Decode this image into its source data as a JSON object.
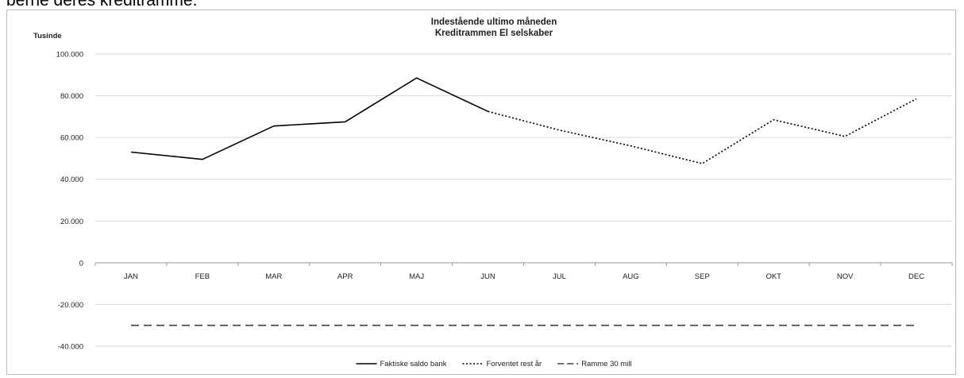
{
  "page": {
    "top_text": "berne deres kreditramme."
  },
  "chart_data": {
    "type": "line",
    "title": [
      "Indestående ultimo måneden",
      "Kreditrammen El selskaber"
    ],
    "ylabel": "Tusinde",
    "xlabel": "",
    "categories": [
      "JAN",
      "FEB",
      "MAR",
      "APR",
      "MAJ",
      "JUN",
      "JUL",
      "AUG",
      "SEP",
      "OKT",
      "NOV",
      "DEC"
    ],
    "ylim": [
      -40000,
      100000
    ],
    "yticks": [
      100000,
      80000,
      60000,
      40000,
      20000,
      0,
      -20000,
      -40000
    ],
    "ytick_labels": [
      "100.000",
      "80.000",
      "60.000",
      "40.000",
      "20.000",
      "0",
      "-20.000",
      "-40.000"
    ],
    "grid": true,
    "legend_position": "bottom",
    "series": [
      {
        "name": "Faktiske saldo bank",
        "style": "solid",
        "color": "#000000",
        "values": [
          53000,
          49500,
          65500,
          67500,
          88500,
          72500,
          null,
          null,
          null,
          null,
          null,
          null
        ]
      },
      {
        "name": "Forventet rest år",
        "style": "dotted",
        "color": "#000000",
        "values": [
          null,
          null,
          null,
          null,
          null,
          72500,
          63500,
          56000,
          47500,
          68500,
          60500,
          78500
        ]
      },
      {
        "name": "Ramme 30 mill",
        "style": "dashed",
        "color": "#404040",
        "values": [
          -30000,
          -30000,
          -30000,
          -30000,
          -30000,
          -30000,
          -30000,
          -30000,
          -30000,
          -30000,
          -30000,
          -30000
        ]
      }
    ]
  }
}
